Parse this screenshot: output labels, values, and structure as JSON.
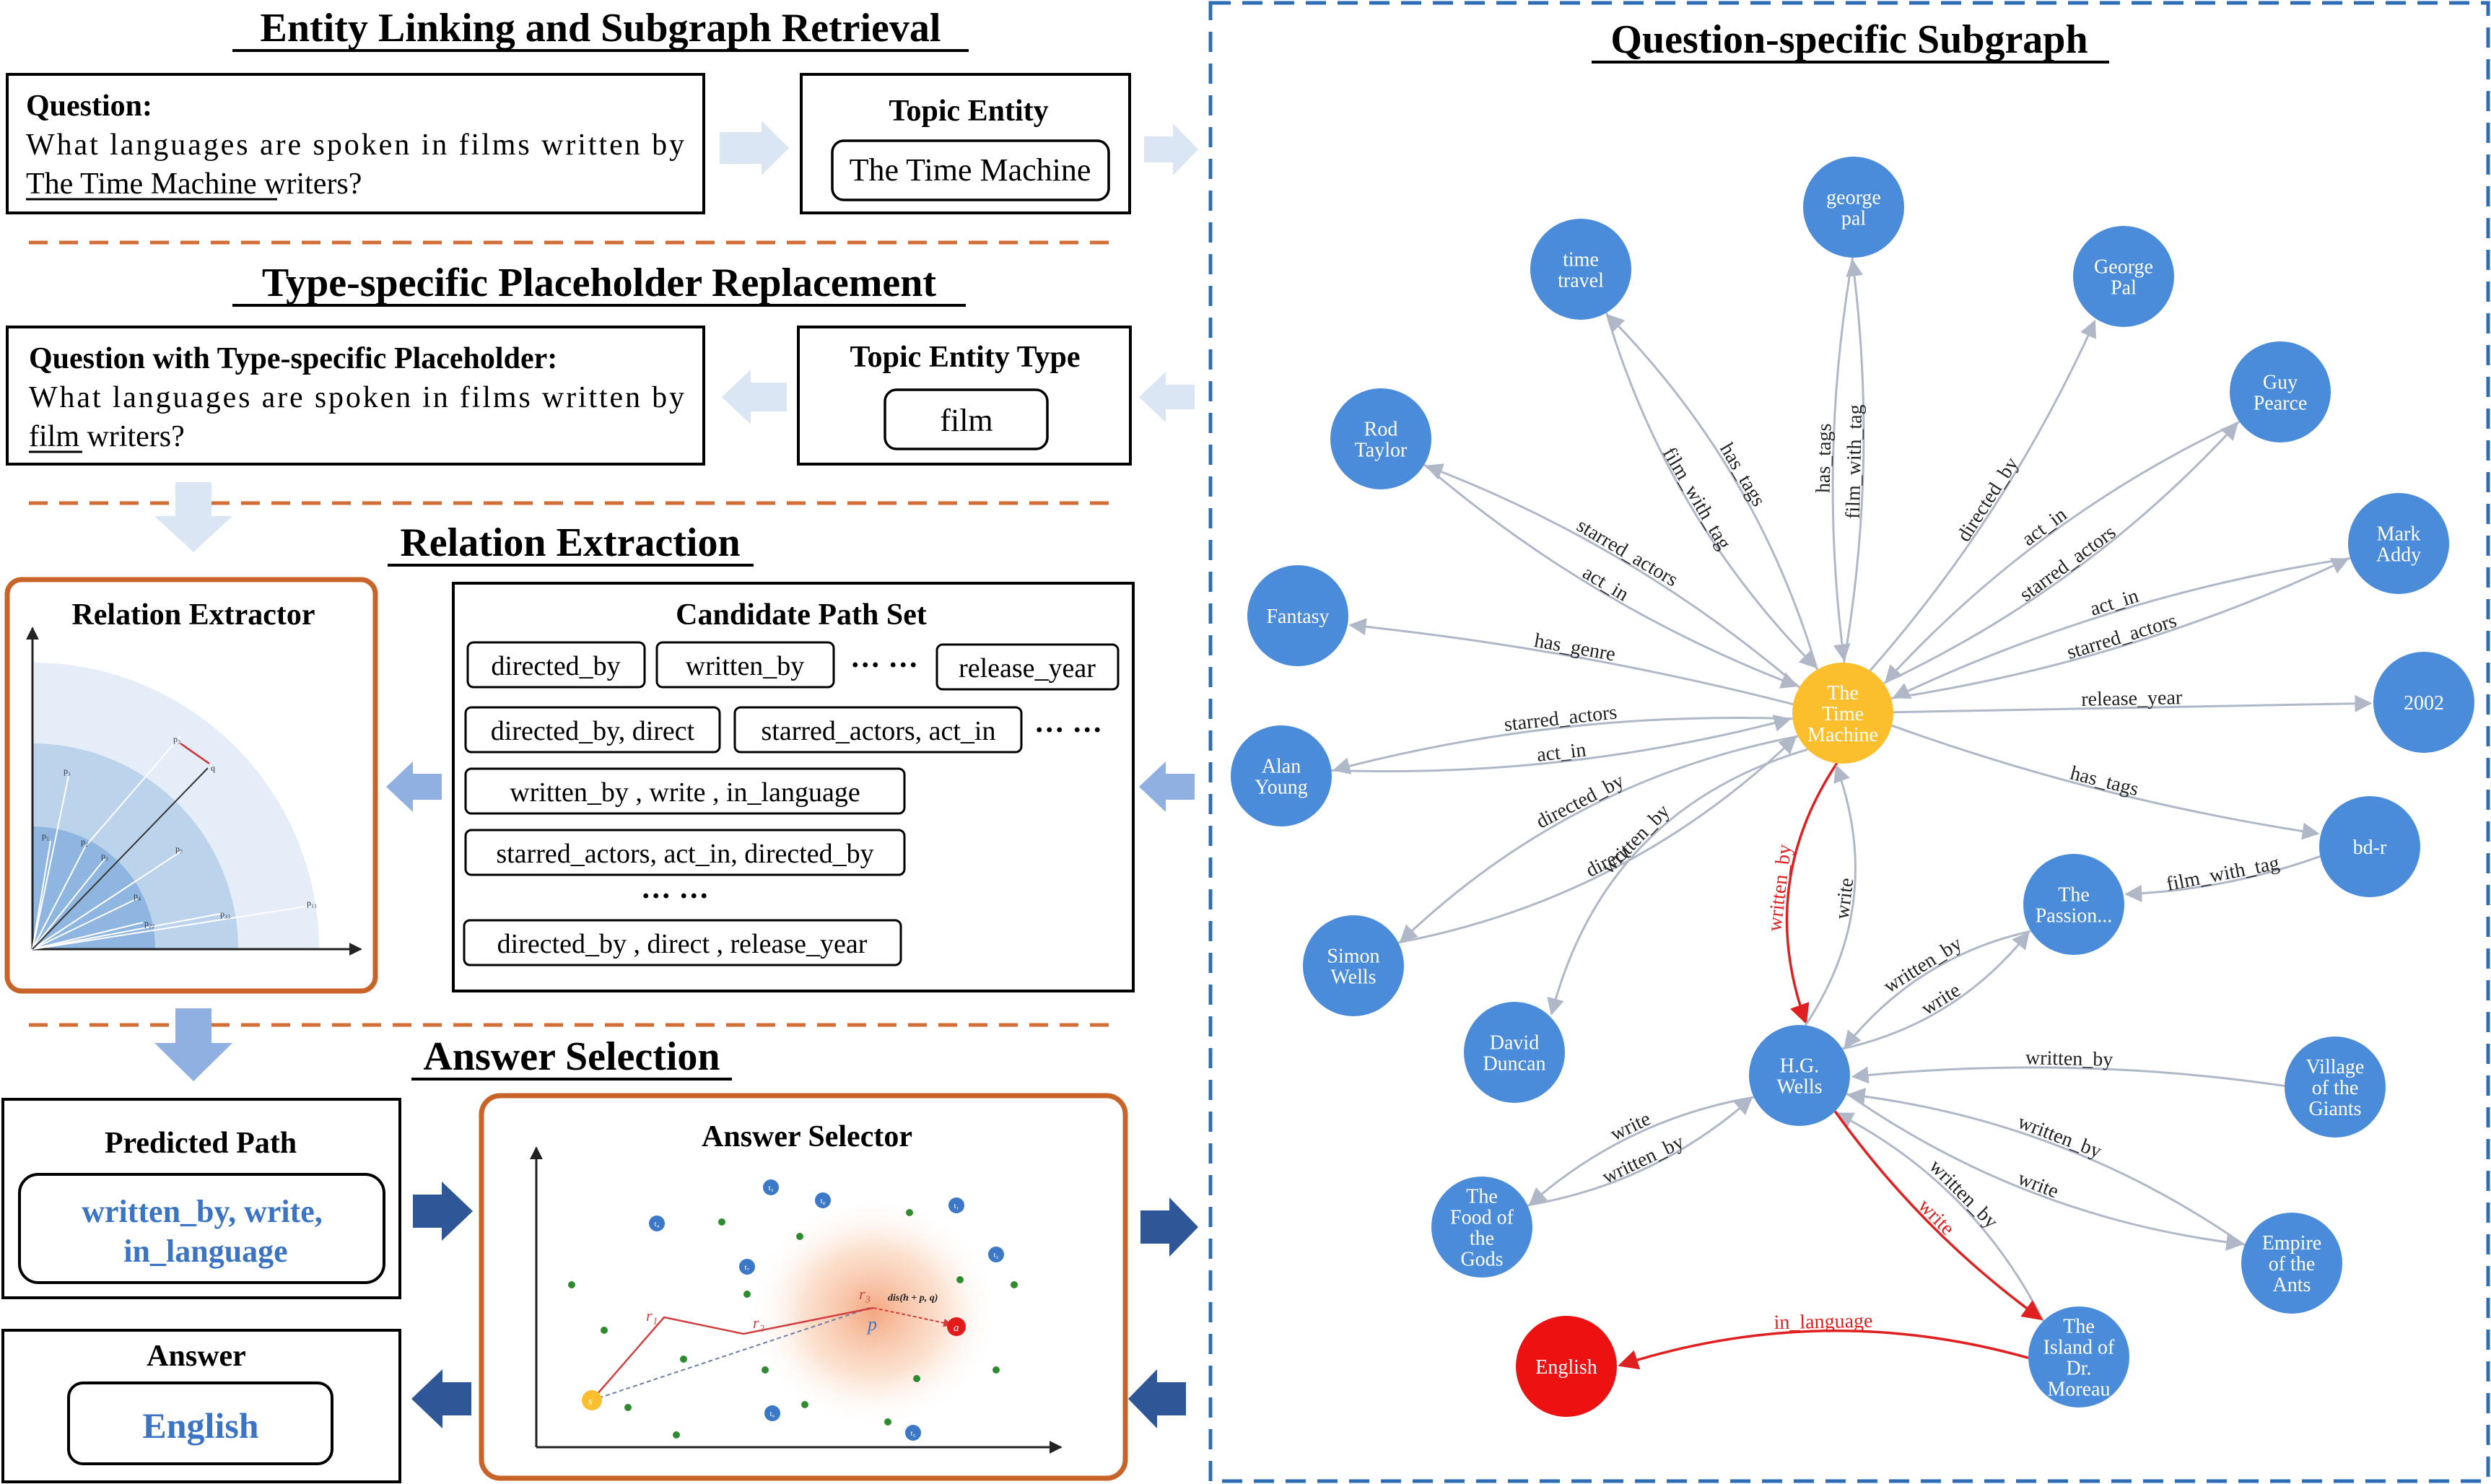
{
  "sections": {
    "entity_linking": "Entity Linking and Subgraph Retrieval",
    "placeholder": "Type-specific Placeholder Replacement",
    "relation_extraction": "Relation Extraction",
    "answer_selection": "Answer Selection",
    "subgraph": "Question-specific Subgraph"
  },
  "question": {
    "label": "Question:",
    "line1": "What languages are spoken in films written by",
    "entity": "The Time Machine",
    "rest": " writers?"
  },
  "topic_entity": {
    "label": "Topic Entity",
    "value": "The Time Machine"
  },
  "placeholder_question": {
    "label": "Question with Type-specific Placeholder:",
    "line1": "What languages are spoken in films written by",
    "entity": "film",
    "rest": " writers?"
  },
  "topic_entity_type": {
    "label": "Topic Entity Type",
    "value": "film"
  },
  "relation_extractor": {
    "label": "Relation Extractor",
    "point_labels": [
      "p₁",
      "p₂",
      "p₃",
      "p₄",
      "p₅",
      "p₆",
      "p₇",
      "p₁₁",
      "p₁₂",
      "p₁₃",
      "p₂₁",
      "p₂₂",
      "p₃₃",
      "q"
    ]
  },
  "candidate_paths": {
    "label": "Candidate Path Set",
    "row1": [
      "directed_by",
      "written_by",
      "release_year"
    ],
    "row2": [
      "directed_by, direct",
      "starred_actors, act_in"
    ],
    "row3": [
      "written_by , write , in_language"
    ],
    "row4": [
      "starred_actors, act_in, directed_by"
    ],
    "row5": [
      "directed_by , direct , release_year"
    ],
    "ellipsis": "··· ···",
    "vdots": "··· ···"
  },
  "predicted_path": {
    "label": "Predicted Path",
    "line1": "written_by, write,",
    "line2": "in_language"
  },
  "answer": {
    "label": "Answer",
    "value": "English"
  },
  "answer_selector": {
    "label": "Answer Selector",
    "r1": "r₁",
    "r2": "r₂",
    "r3": "r₃",
    "p": "p",
    "a": "a",
    "s": "s",
    "dis": "dis(h + p, q)",
    "t_labels": [
      "t₁",
      "t₂",
      "t₃",
      "t₄",
      "t₅",
      "t₆",
      "t₇",
      "t₈"
    ]
  },
  "graph": {
    "nodes": [
      {
        "id": "time_machine",
        "lines": [
          "The",
          "Time",
          "Machine"
        ],
        "color": "#fbbf2e"
      },
      {
        "id": "time_travel",
        "lines": [
          "time",
          "travel"
        ],
        "color": "#4a8cd9"
      },
      {
        "id": "george_pal_l",
        "lines": [
          "george",
          "pal"
        ],
        "color": "#4a8cd9"
      },
      {
        "id": "george_pal",
        "lines": [
          "George",
          "Pal"
        ],
        "color": "#4a8cd9"
      },
      {
        "id": "guy_pearce",
        "lines": [
          "Guy",
          "Pearce"
        ],
        "color": "#4a8cd9"
      },
      {
        "id": "mark_addy",
        "lines": [
          "Mark",
          "Addy"
        ],
        "color": "#4a8cd9"
      },
      {
        "id": "y2002",
        "lines": [
          "2002"
        ],
        "color": "#4a8cd9"
      },
      {
        "id": "bdr",
        "lines": [
          "bd-r"
        ],
        "color": "#4a8cd9"
      },
      {
        "id": "rod_taylor",
        "lines": [
          "Rod",
          "Taylor"
        ],
        "color": "#4a8cd9"
      },
      {
        "id": "fantasy",
        "lines": [
          "Fantasy"
        ],
        "color": "#4a8cd9"
      },
      {
        "id": "alan_young",
        "lines": [
          "Alan",
          "Young"
        ],
        "color": "#4a8cd9"
      },
      {
        "id": "simon_wells",
        "lines": [
          "Simon",
          "Wells"
        ],
        "color": "#4a8cd9"
      },
      {
        "id": "david_duncan",
        "lines": [
          "David",
          "Duncan"
        ],
        "color": "#4a8cd9"
      },
      {
        "id": "passion",
        "lines": [
          "The",
          "Passion..."
        ],
        "color": "#4a8cd9"
      },
      {
        "id": "hg_wells",
        "lines": [
          "H.G.",
          "Wells"
        ],
        "color": "#4a8cd9"
      },
      {
        "id": "village",
        "lines": [
          "Village",
          "of the",
          "Giants"
        ],
        "color": "#4a8cd9"
      },
      {
        "id": "empire",
        "lines": [
          "Empire",
          "of the",
          "Ants"
        ],
        "color": "#4a8cd9"
      },
      {
        "id": "food",
        "lines": [
          "The",
          "Food of",
          "the",
          "Gods"
        ],
        "color": "#4a8cd9"
      },
      {
        "id": "island",
        "lines": [
          "The",
          "Island of",
          "Dr.",
          "Moreau"
        ],
        "color": "#4a8cd9"
      },
      {
        "id": "english",
        "lines": [
          "English"
        ],
        "color": "#ee1111"
      }
    ],
    "edges": [
      {
        "from": "time_machine",
        "to": "time_travel",
        "label": "has_tags"
      },
      {
        "from": "time_machine",
        "to": "george_pal_l",
        "label": "film_with_tag"
      },
      {
        "from": "george_pal_l",
        "to": "time_machine",
        "label": "has_tags"
      },
      {
        "from": "time_travel",
        "to": "time_machine",
        "label": "film_with_tag"
      },
      {
        "from": "time_machine",
        "to": "george_pal",
        "label": "directed_by"
      },
      {
        "from": "guy_pearce",
        "to": "time_machine",
        "label": "act_in"
      },
      {
        "from": "time_machine",
        "to": "guy_pearce",
        "label": "starred_actors"
      },
      {
        "from": "mark_addy",
        "to": "time_machine",
        "label": "act_in"
      },
      {
        "from": "time_machine",
        "to": "mark_addy",
        "label": "starred_actors"
      },
      {
        "from": "time_machine",
        "to": "y2002",
        "label": "release_year"
      },
      {
        "from": "time_machine",
        "to": "bdr",
        "label": "has_tags"
      },
      {
        "from": "bdr",
        "to": "passion",
        "label": "film_with_tag"
      },
      {
        "from": "time_machine",
        "to": "rod_taylor",
        "label": "starred_actors"
      },
      {
        "from": "rod_taylor",
        "to": "time_machine",
        "label": "act_in"
      },
      {
        "from": "time_machine",
        "to": "fantasy",
        "label": "has_genre"
      },
      {
        "from": "alan_young",
        "to": "time_machine",
        "label": "act_in"
      },
      {
        "from": "time_machine",
        "to": "alan_young",
        "label": "starred_actors"
      },
      {
        "from": "time_machine",
        "to": "simon_wells",
        "label": "directed_by"
      },
      {
        "from": "simon_wells",
        "to": "time_machine",
        "label": "direct"
      },
      {
        "from": "time_machine",
        "to": "david_duncan",
        "label": "written_by"
      },
      {
        "from": "time_machine",
        "to": "hg_wells",
        "label": "written_by",
        "red": true
      },
      {
        "from": "hg_wells",
        "to": "time_machine",
        "label": "write"
      },
      {
        "from": "hg_wells",
        "to": "passion",
        "label": "write"
      },
      {
        "from": "passion",
        "to": "hg_wells",
        "label": "written_by"
      },
      {
        "from": "village",
        "to": "hg_wells",
        "label": "written_by"
      },
      {
        "from": "empire",
        "to": "hg_wells",
        "label": "written_by"
      },
      {
        "from": "hg_wells",
        "to": "empire",
        "label": "write"
      },
      {
        "from": "hg_wells",
        "to": "food",
        "label": "write"
      },
      {
        "from": "food",
        "to": "hg_wells",
        "label": "written_by"
      },
      {
        "from": "island",
        "to": "hg_wells",
        "label": "written_by"
      },
      {
        "from": "hg_wells",
        "to": "island",
        "label": "write",
        "red": true
      },
      {
        "from": "island",
        "to": "english",
        "label": "in_language",
        "red": true
      }
    ]
  },
  "colors": {
    "node_blue": "#4a8cd9",
    "node_yellow": "#fbbf2e",
    "node_red": "#ee1111",
    "frame_orange": "#c8642a",
    "dash_blue": "#2e6db5",
    "text_blue": "#3b74c4",
    "arrow_light": "#dbe6f4",
    "arrow_mid": "#8fb0e0",
    "arrow_dark": "#2f5797",
    "edge_gray": "#b0b8c8",
    "edge_red": "#e02020"
  }
}
